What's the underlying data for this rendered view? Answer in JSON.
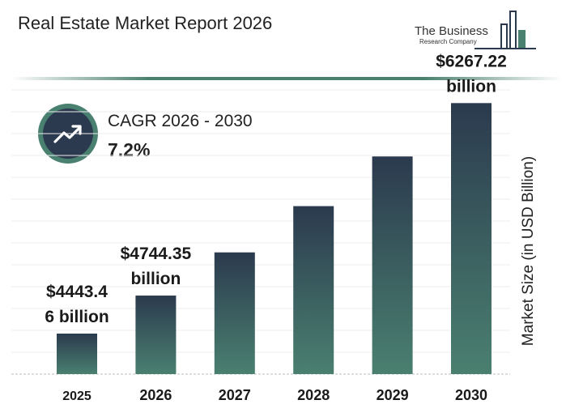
{
  "header": {
    "title": "Real Estate Market Report 2026",
    "logo_line1": "The Business",
    "logo_line2": "Research Company"
  },
  "cagr": {
    "label": "CAGR 2026 - 2030",
    "value": "7.2%"
  },
  "colors": {
    "bar_top": "#2b3a4e",
    "bar_bottom": "#4a8070",
    "accent": "#4a8070"
  },
  "chart_data": {
    "type": "bar",
    "categories": [
      "2025",
      "2026",
      "2027",
      "2028",
      "2029",
      "2030"
    ],
    "values": [
      4443.46,
      4744.35,
      5086,
      5452,
      5845,
      6267.22
    ],
    "data_labels": [
      [
        "$4443.4",
        "6 billion"
      ],
      [
        "$4744.35",
        "billion"
      ],
      null,
      null,
      null,
      [
        "$6267.22",
        "billion"
      ]
    ],
    "ylabel": "Market Size (in USD Billion)",
    "xlabel": "",
    "grid": true,
    "legend": "none"
  }
}
